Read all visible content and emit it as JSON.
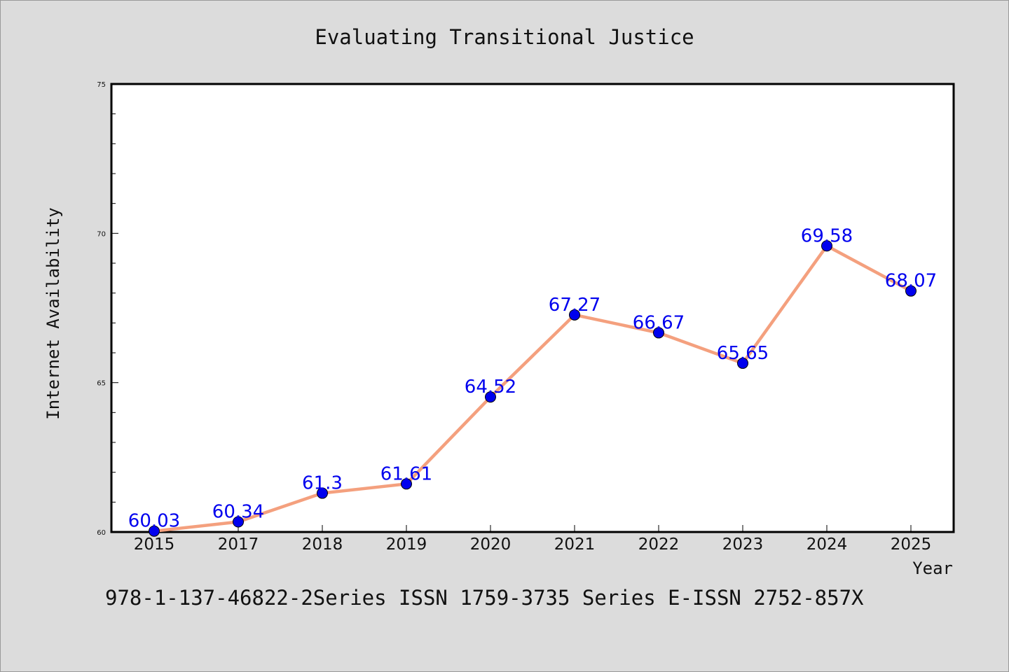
{
  "chart_data": {
    "type": "line",
    "title": "Evaluating Transitional Justice",
    "xlabel": "Year",
    "ylabel": "Internet Availability",
    "categories": [
      "2015",
      "2017",
      "2018",
      "2019",
      "2020",
      "2021",
      "2022",
      "2023",
      "2024",
      "2025"
    ],
    "values": [
      60.03,
      60.34,
      61.3,
      61.61,
      64.52,
      67.27,
      66.67,
      65.65,
      69.58,
      68.07
    ],
    "data_labels": [
      "60.03",
      "60.34",
      "61.3",
      "61.61",
      "64.52",
      "67.27",
      "66.67",
      "65.65",
      "69.58",
      "68.07"
    ],
    "ylim": [
      60,
      75
    ],
    "yticks": [
      60,
      65,
      70,
      75
    ],
    "ytick_labels": [
      "60",
      "65",
      "70",
      "75"
    ],
    "line_color": "#f4a07e",
    "marker_color": "#0000ee",
    "label_color": "#0000ee",
    "grid": false,
    "legend": "none"
  },
  "footer": {
    "text": "978-1-137-46822-2Series ISSN 1759-3735 Series E-ISSN 2752-857X"
  }
}
